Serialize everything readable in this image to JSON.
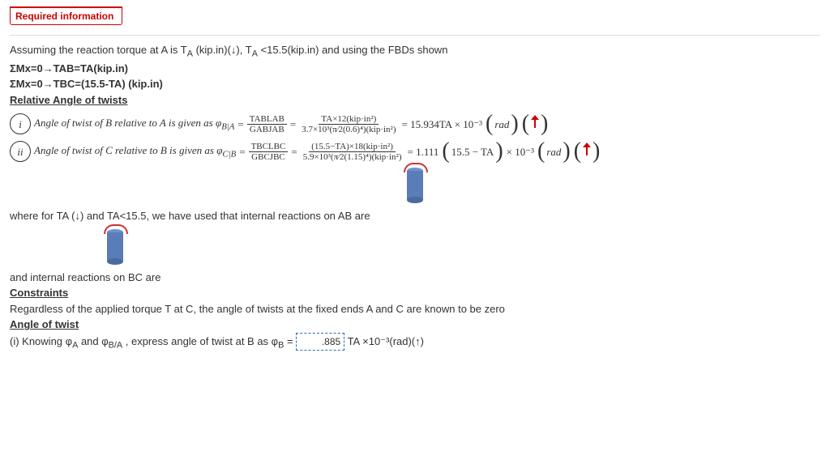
{
  "tab": {
    "label": "Required information"
  },
  "intro": {
    "line1_a": "Assuming the reaction torque at A is T",
    "line1_b": " (kip.in)(↓), T",
    "line1_c": "<15.5(kip.in) and using the FBDs shown",
    "eq1": "ΣMx=0→TAB=TA(kip.in)",
    "eq2": "ΣMx=0→TBC=(15.5-TA) (kip.in)",
    "rel": "Relative Angle of twists"
  },
  "eq_i": {
    "lead": "Angle of twist of B relative to A is given as φ",
    "sub": "B|A",
    "eq": " = ",
    "frac1_num": "TABLAB",
    "frac1_den": "GABJAB",
    "frac2_num": "TA×12(kip·in²)",
    "frac2_den": "3.7×10³(π⁄2(0.6)⁴)(kip·in²)",
    "res": " = 15.934TA × 10⁻³",
    "unit": "rad"
  },
  "eq_ii": {
    "lead": "Angle of twist of C relative to B is given as φ",
    "sub": "C|B",
    "frac1_num": "TBCLBC",
    "frac1_den": "GBCJBC",
    "frac2_num": "(15.5−TA)×18(kip·in²)",
    "frac2_den": "5.9×10³(π⁄2(1.15)⁴)(kip·in²)",
    "res_a": " = 1.111",
    "res_b": "15.5 − TA",
    "res_c": " × 10⁻³",
    "unit": "rad"
  },
  "mid": {
    "where": "where for TA (↓) and TA<15.5, we have used that internal reactions on AB are",
    "bc": "and internal reactions on BC are"
  },
  "constraints": {
    "h": "Constraints",
    "t": "Regardless of the applied torque T at C, the angle of twists at the fixed ends A and C are known to be zero"
  },
  "angle": {
    "h": "Angle of twist",
    "l_a": "(i) Knowing φ",
    "l_b": " and φ",
    "l_c": ", express angle of twist at B as φ",
    "l_d": "=",
    "val": ".885",
    "tail": " TA ×10⁻³(rad)(↑)"
  }
}
